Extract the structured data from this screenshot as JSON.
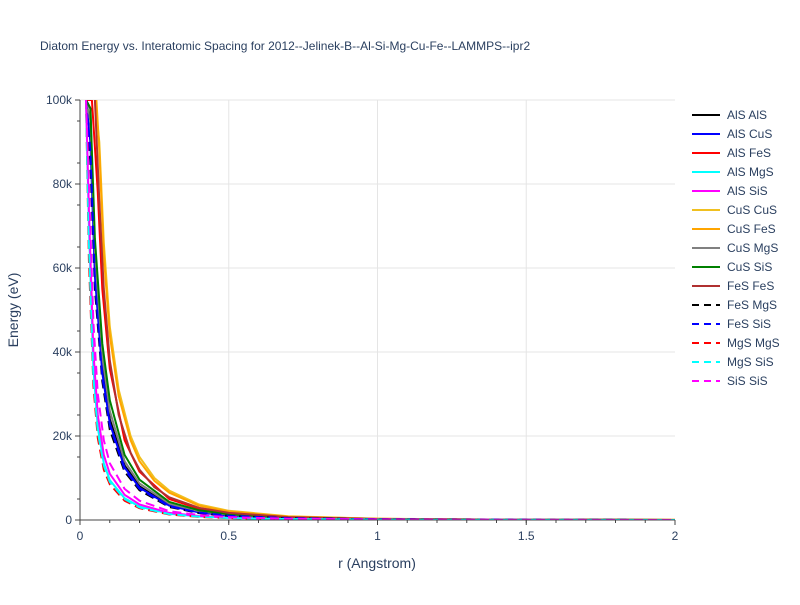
{
  "chart_data": {
    "type": "line",
    "title": "Diatom Energy vs. Interatomic Spacing for 2012--Jelinek-B--Al-Si-Mg-Cu-Fe--LAMMPS--ipr2",
    "xlabel": "r (Angstrom)",
    "ylabel": "Energy (eV)",
    "xlim": [
      0,
      2
    ],
    "ylim": [
      0,
      100000
    ],
    "x_ticks": [
      0,
      0.5,
      1,
      1.5,
      2
    ],
    "x_tick_labels": [
      "0",
      "0.5",
      "1",
      "1.5",
      "2"
    ],
    "y_ticks": [
      0,
      20000,
      40000,
      60000,
      80000,
      100000
    ],
    "y_tick_labels": [
      "0",
      "20k",
      "40k",
      "60k",
      "80k",
      "100k"
    ],
    "grid": true,
    "legend_position": "right",
    "series": [
      {
        "name": "AlS AlS",
        "color": "#000000",
        "dash": "solid",
        "x": [
          0.02,
          0.035,
          0.05,
          0.075,
          0.1,
          0.15,
          0.2,
          0.3,
          0.4,
          0.5,
          0.7,
          1.0,
          1.5,
          2.0
        ],
        "y": [
          100000,
          98000,
          60000,
          36000,
          24000,
          13000,
          8000,
          3500,
          1900,
          1100,
          500,
          200,
          60,
          10
        ]
      },
      {
        "name": "AlS CuS",
        "color": "#0000ff",
        "dash": "solid",
        "x": [
          0.02,
          0.035,
          0.05,
          0.075,
          0.1,
          0.15,
          0.2,
          0.3,
          0.4,
          0.5,
          0.7,
          1.0,
          1.5,
          2.0
        ],
        "y": [
          100000,
          90000,
          58000,
          35000,
          23000,
          12500,
          7700,
          3400,
          1800,
          1000,
          450,
          180,
          50,
          10
        ]
      },
      {
        "name": "AlS FeS",
        "color": "#ff0000",
        "dash": "solid",
        "x": [
          0.02,
          0.04,
          0.06,
          0.075,
          0.1,
          0.15,
          0.2,
          0.3,
          0.4,
          0.5,
          0.7,
          1.0,
          1.5,
          2.0
        ],
        "y": [
          100000,
          100000,
          78000,
          55000,
          36000,
          19000,
          11500,
          5000,
          2700,
          1600,
          700,
          260,
          70,
          15
        ]
      },
      {
        "name": "AlS MgS",
        "color": "#00ffff",
        "dash": "solid",
        "x": [
          0.02,
          0.03,
          0.045,
          0.06,
          0.08,
          0.1,
          0.15,
          0.2,
          0.3,
          0.4,
          0.5,
          0.7,
          1.0,
          1.5,
          2.0
        ],
        "y": [
          100000,
          70000,
          36000,
          22000,
          13500,
          9500,
          5200,
          3200,
          1500,
          850,
          500,
          220,
          90,
          25,
          5
        ]
      },
      {
        "name": "AlS SiS",
        "color": "#ff00ff",
        "dash": "solid",
        "x": [
          0.02,
          0.03,
          0.045,
          0.06,
          0.08,
          0.1,
          0.15,
          0.2,
          0.3,
          0.4,
          0.5,
          0.7,
          1.0,
          1.5,
          2.0
        ],
        "y": [
          100000,
          74000,
          40000,
          25000,
          15500,
          11000,
          6000,
          3700,
          1700,
          950,
          560,
          240,
          100,
          30,
          5
        ]
      },
      {
        "name": "CuS CuS",
        "color": "#f0c020",
        "dash": "solid",
        "x": [
          0.05,
          0.065,
          0.08,
          0.1,
          0.13,
          0.17,
          0.2,
          0.25,
          0.3,
          0.4,
          0.5,
          0.7,
          1.0,
          1.5,
          2.0
        ],
        "y": [
          100000,
          90000,
          66000,
          46000,
          31000,
          20000,
          15000,
          10000,
          7000,
          3700,
          2200,
          900,
          320,
          80,
          15
        ]
      },
      {
        "name": "CuS FeS",
        "color": "#ffa500",
        "dash": "solid",
        "x": [
          0.055,
          0.065,
          0.08,
          0.1,
          0.13,
          0.17,
          0.2,
          0.25,
          0.3,
          0.4,
          0.5,
          0.7,
          1.0,
          1.5,
          2.0
        ],
        "y": [
          100000,
          88000,
          63000,
          44000,
          29500,
          19000,
          14000,
          9300,
          6500,
          3400,
          2000,
          820,
          290,
          70,
          15
        ]
      },
      {
        "name": "CuS MgS",
        "color": "#808080",
        "dash": "solid",
        "x": [
          0.02,
          0.035,
          0.05,
          0.075,
          0.1,
          0.15,
          0.2,
          0.3,
          0.4,
          0.5,
          0.7,
          1.0,
          1.5,
          2.0
        ],
        "y": [
          100000,
          95000,
          64000,
          39000,
          26000,
          14000,
          8700,
          3900,
          2100,
          1250,
          540,
          210,
          60,
          10
        ]
      },
      {
        "name": "CuS SiS",
        "color": "#008000",
        "dash": "solid",
        "x": [
          0.02,
          0.035,
          0.05,
          0.075,
          0.1,
          0.15,
          0.2,
          0.3,
          0.4,
          0.5,
          0.7,
          1.0,
          1.5,
          2.0
        ],
        "y": [
          100000,
          98000,
          67000,
          42000,
          28500,
          15500,
          9600,
          4300,
          2300,
          1350,
          580,
          220,
          60,
          10
        ]
      },
      {
        "name": "FeS FeS",
        "color": "#b03030",
        "dash": "solid",
        "x": [
          0.05,
          0.065,
          0.08,
          0.1,
          0.13,
          0.17,
          0.2,
          0.25,
          0.3,
          0.4,
          0.5,
          0.7,
          1.0,
          1.5,
          2.0
        ],
        "y": [
          100000,
          76000,
          55000,
          38000,
          25000,
          16000,
          12000,
          7800,
          5400,
          2900,
          1700,
          700,
          250,
          60,
          10
        ]
      },
      {
        "name": "FeS MgS",
        "color": "#000000",
        "dash": "dash",
        "x": [
          0.02,
          0.035,
          0.05,
          0.075,
          0.1,
          0.15,
          0.2,
          0.3,
          0.4,
          0.5,
          0.7,
          1.0,
          1.5,
          2.0
        ],
        "y": [
          100000,
          85000,
          55000,
          33000,
          21500,
          11500,
          7100,
          3100,
          1650,
          950,
          420,
          170,
          45,
          10
        ]
      },
      {
        "name": "FeS SiS",
        "color": "#0000ff",
        "dash": "dash",
        "x": [
          0.02,
          0.035,
          0.05,
          0.075,
          0.1,
          0.15,
          0.2,
          0.3,
          0.4,
          0.5,
          0.7,
          1.0,
          1.5,
          2.0
        ],
        "y": [
          100000,
          88000,
          57000,
          34000,
          22500,
          12000,
          7400,
          3250,
          1750,
          1000,
          440,
          175,
          50,
          10
        ]
      },
      {
        "name": "MgS MgS",
        "color": "#ff0000",
        "dash": "dash",
        "x": [
          0.02,
          0.03,
          0.045,
          0.06,
          0.08,
          0.1,
          0.15,
          0.2,
          0.3,
          0.4,
          0.5,
          0.7,
          1.0,
          1.5,
          2.0
        ],
        "y": [
          100000,
          62000,
          32000,
          19500,
          12000,
          8500,
          4600,
          2800,
          1300,
          750,
          450,
          200,
          80,
          20,
          5
        ]
      },
      {
        "name": "MgS SiS",
        "color": "#00ffff",
        "dash": "dash",
        "x": [
          0.02,
          0.03,
          0.045,
          0.06,
          0.08,
          0.1,
          0.15,
          0.2,
          0.3,
          0.4,
          0.5,
          0.7,
          1.0,
          1.5,
          2.0
        ],
        "y": [
          100000,
          66000,
          34000,
          21000,
          13000,
          9100,
          5000,
          3000,
          1400,
          800,
          480,
          210,
          85,
          22,
          5
        ]
      },
      {
        "name": "SiS SiS",
        "color": "#ff00ff",
        "dash": "dash",
        "x": [
          0.02,
          0.03,
          0.045,
          0.06,
          0.08,
          0.1,
          0.15,
          0.2,
          0.3,
          0.4,
          0.5,
          0.7,
          1.0,
          1.5,
          2.0
        ],
        "y": [
          100000,
          80000,
          47000,
          30000,
          19000,
          13500,
          7400,
          4600,
          2100,
          1200,
          700,
          300,
          120,
          35,
          8
        ]
      }
    ]
  }
}
